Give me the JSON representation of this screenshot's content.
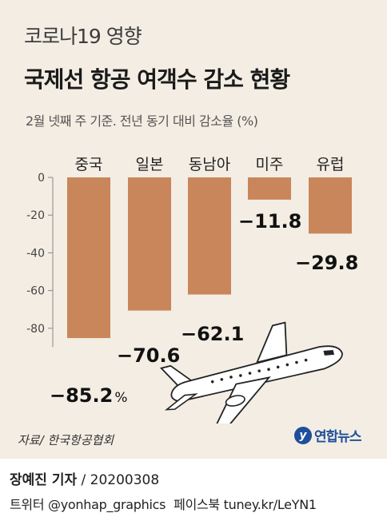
{
  "header": {
    "subtitle": "코로나19 영향",
    "title": "국제선 항공 여객수 감소 현황",
    "note": "2월 넷째 주 기준. 전년 동기 대비 감소율 (%)"
  },
  "chart_data": {
    "type": "bar",
    "title": "국제선 항공 여객수 감소 현황",
    "subtitle": "2월 넷째 주 기준. 전년 동기 대비 감소율 (%)",
    "categories": [
      "중국",
      "일본",
      "동남아",
      "미주",
      "유럽"
    ],
    "values": [
      -85.2,
      -70.6,
      -62.1,
      -11.8,
      -29.8
    ],
    "value_labels": [
      "−85.2",
      "−70.6",
      "−62.1",
      "−11.8",
      "−29.8"
    ],
    "first_value_unit": "%",
    "ylim": [
      -90,
      0
    ],
    "yticks": [
      0,
      -20,
      -40,
      -60,
      -80
    ],
    "ytick_labels": [
      "0",
      "-20",
      "-40",
      "-60",
      "-80"
    ],
    "grid": false,
    "colors": {
      "bar": "#c9865a",
      "panel": "#f3ede3"
    }
  },
  "illustration": {
    "icon": "airplane-icon"
  },
  "source": "자료/ 한국항공협회",
  "logo": {
    "icon": "yonhap-logo-icon",
    "mark": "y",
    "text": "연합뉴스"
  },
  "footer": {
    "reporter": "장예진 기자",
    "date": " / 20200308",
    "twitter": "트위터 @yonhap_graphics",
    "facebook": "페이스북 tuney.kr/LeYN1"
  }
}
